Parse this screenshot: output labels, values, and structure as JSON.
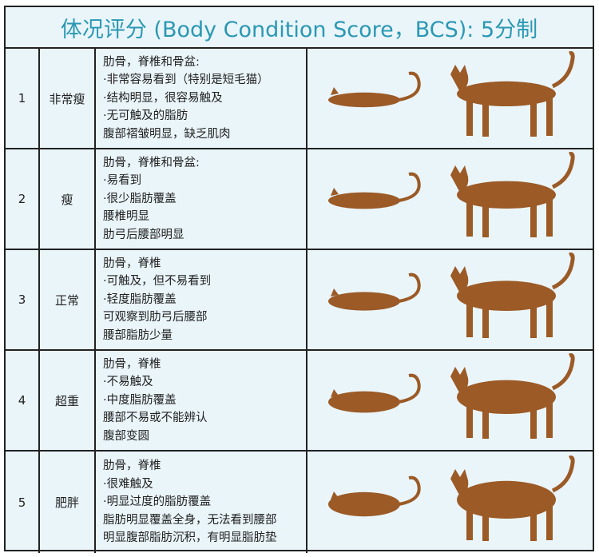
{
  "title": "体况评分 (Body Condition Score，BCS): 5分制",
  "colors": {
    "title": "#2a98b3",
    "background": "#eaf5fa",
    "cat": "#9b5a26"
  },
  "rows": [
    {
      "score": "1",
      "level": "非常瘦",
      "lines": [
        "肋骨，脊椎和骨盆:",
        "·非常容易看到（特别是短毛猫）",
        "·结构明显，很容易触及",
        "·无可触及的脂肪",
        "腹部褶皱明显，缺乏肌肉"
      ]
    },
    {
      "score": "2",
      "level": "瘦",
      "lines": [
        "肋骨，脊椎和骨盆:",
        "·易看到",
        "·很少脂肪覆盖",
        "腰椎明显",
        "肋弓后腰部明显"
      ]
    },
    {
      "score": "3",
      "level": "正常",
      "lines": [
        "肋骨，脊椎",
        "·可触及，但不易看到",
        "·轻度脂肪覆盖",
        "可观察到肋弓后腰部",
        "腰部脂肪少量"
      ]
    },
    {
      "score": "4",
      "level": "超重",
      "lines": [
        "肋骨，脊椎",
        "·不易触及",
        "·中度脂肪覆盖",
        "腰部不易或不能辨认",
        "腹部变圆"
      ]
    },
    {
      "score": "5",
      "level": "肥胖",
      "lines": [
        "肋骨，脊椎",
        "·很难触及",
        "·明显过度的脂肪覆盖",
        "脂肪明显覆盖全身，无法看到腰部",
        "明显腹部脂肪沉积，有明显脂肪垫"
      ]
    }
  ]
}
